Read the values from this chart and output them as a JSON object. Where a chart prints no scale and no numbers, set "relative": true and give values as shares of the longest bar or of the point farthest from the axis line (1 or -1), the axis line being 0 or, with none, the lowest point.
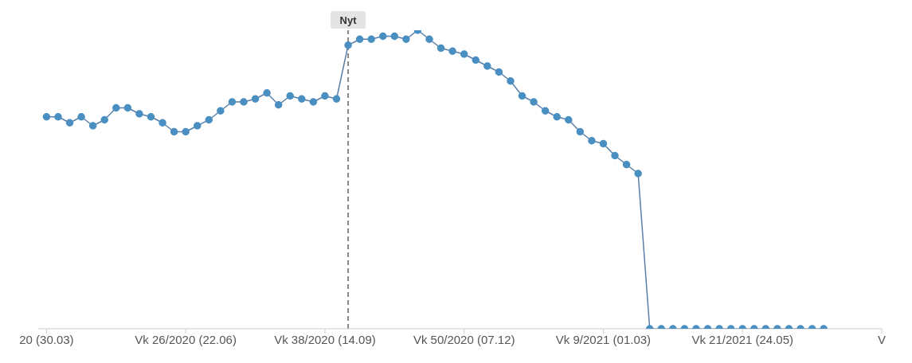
{
  "chart_data": {
    "type": "line",
    "relative": true,
    "marker": "circle",
    "line_style": "solid",
    "x": [
      "2020-03-30",
      "2020-04-06",
      "2020-04-13",
      "2020-04-20",
      "2020-04-27",
      "2020-05-04",
      "2020-05-11",
      "2020-05-18",
      "2020-05-25",
      "2020-06-01",
      "2020-06-08",
      "2020-06-15",
      "2020-06-22",
      "2020-06-29",
      "2020-07-06",
      "2020-07-13",
      "2020-07-20",
      "2020-07-27",
      "2020-08-03",
      "2020-08-10",
      "2020-08-17",
      "2020-08-24",
      "2020-08-31",
      "2020-09-07",
      "2020-09-14",
      "2020-09-21",
      "2020-09-28",
      "2020-10-05",
      "2020-10-12",
      "2020-10-19",
      "2020-10-26",
      "2020-11-02",
      "2020-11-09",
      "2020-11-16",
      "2020-11-23",
      "2020-11-30",
      "2020-12-07",
      "2020-12-14",
      "2020-12-21",
      "2020-12-28",
      "2021-01-04",
      "2021-01-11",
      "2021-01-18",
      "2021-01-25",
      "2021-02-01",
      "2021-02-08",
      "2021-02-15",
      "2021-02-22",
      "2021-03-01",
      "2021-03-08",
      "2021-03-15",
      "2021-03-22",
      "2021-03-29",
      "2021-04-05",
      "2021-04-12",
      "2021-04-19",
      "2021-04-26",
      "2021-05-03",
      "2021-05-10",
      "2021-05-17",
      "2021-05-24",
      "2021-05-31",
      "2021-06-07",
      "2021-06-14",
      "2021-06-21",
      "2021-06-28",
      "2021-07-05",
      "2021-07-12"
    ],
    "series": [
      {
        "color": "#4a8fc2",
        "values": [
          0.71,
          0.71,
          0.69,
          0.71,
          0.68,
          0.7,
          0.74,
          0.74,
          0.72,
          0.71,
          0.69,
          0.66,
          0.66,
          0.68,
          0.7,
          0.73,
          0.76,
          0.76,
          0.77,
          0.79,
          0.75,
          0.78,
          0.77,
          0.76,
          0.78,
          0.77,
          0.95,
          0.97,
          0.97,
          0.98,
          0.98,
          0.97,
          1.0,
          0.97,
          0.94,
          0.93,
          0.92,
          0.9,
          0.88,
          0.86,
          0.83,
          0.78,
          0.76,
          0.73,
          0.71,
          0.7,
          0.66,
          0.63,
          0.62,
          0.58,
          0.55,
          0.52,
          0,
          0,
          0,
          0,
          0,
          0,
          0,
          0,
          0,
          0,
          0,
          0,
          0,
          0,
          0,
          0
        ]
      }
    ],
    "xlim": [
      "2020-03-25",
      "2021-08-16"
    ],
    "xticks": [
      {
        "value": "2020-03-30",
        "label": "20 (30.03)"
      },
      {
        "value": "2020-06-22",
        "label": "Vk 26/2020 (22.06)"
      },
      {
        "value": "2020-09-14",
        "label": "Vk 38/2020 (14.09)"
      },
      {
        "value": "2020-12-07",
        "label": "Vk 50/2020 (07.12)"
      },
      {
        "value": "2021-03-01",
        "label": "Vk 9/2021 (01.03)"
      },
      {
        "value": "2021-05-24",
        "label": "Vk 21/2021 (24.05)"
      },
      {
        "value": "2021-08-16",
        "label": "V"
      }
    ],
    "ref_lines": [
      {
        "axis": "x",
        "value": "2020-09-28",
        "label": "Nyt",
        "color": "#888888",
        "line_style": "dashed"
      }
    ],
    "grid": false
  }
}
